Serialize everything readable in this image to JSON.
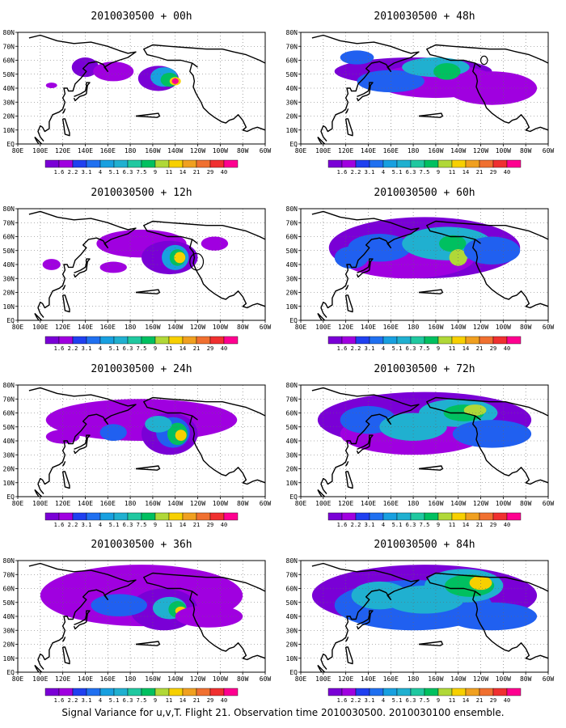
{
  "panels": [
    {
      "id": "p00",
      "title": "2010030500 + 00h",
      "max_level": 11,
      "blobs": [
        [
          140,
          55,
          12,
          7,
          "#7a00d6"
        ],
        [
          165,
          52,
          18,
          7,
          "#a000e0"
        ],
        [
          205,
          47,
          18,
          9,
          "#7a00d6"
        ],
        [
          210,
          48,
          12,
          7,
          "#18a0e0"
        ],
        [
          215,
          46,
          8,
          5,
          "#00c060"
        ],
        [
          220,
          45,
          5,
          3,
          "#f7d000"
        ],
        [
          220,
          45,
          3,
          2,
          "#ff0090"
        ],
        [
          110,
          42,
          5,
          2,
          "#a000e0"
        ]
      ]
    },
    {
      "id": "p48",
      "title": "2010030500 + 48h",
      "max_level": 7,
      "blobs": [
        [
          180,
          52,
          70,
          10,
          "#7a00d6"
        ],
        [
          200,
          45,
          55,
          12,
          "#a000e0"
        ],
        [
          160,
          45,
          30,
          8,
          "#2060f0"
        ],
        [
          200,
          55,
          30,
          7,
          "#20b0d0"
        ],
        [
          210,
          52,
          12,
          6,
          "#00c060"
        ],
        [
          250,
          40,
          40,
          12,
          "#a000e0"
        ],
        [
          130,
          62,
          15,
          5,
          "#2060f0"
        ]
      ]
    },
    {
      "id": "p12",
      "title": "2010030500 + 12h",
      "max_level": 10,
      "blobs": [
        [
          190,
          55,
          40,
          10,
          "#a000e0"
        ],
        [
          215,
          45,
          25,
          12,
          "#7a00d6"
        ],
        [
          220,
          45,
          12,
          9,
          "#18a0e0"
        ],
        [
          222,
          45,
          7,
          6,
          "#00c060"
        ],
        [
          224,
          45,
          5,
          4,
          "#f7d000"
        ],
        [
          110,
          40,
          8,
          4,
          "#a000e0"
        ],
        [
          165,
          38,
          12,
          4,
          "#a000e0"
        ],
        [
          255,
          55,
          12,
          5,
          "#a000e0"
        ]
      ]
    },
    {
      "id": "p60",
      "title": "2010030500 + 60h",
      "max_level": 8,
      "blobs": [
        [
          190,
          52,
          85,
          22,
          "#7a00d6"
        ],
        [
          175,
          45,
          60,
          15,
          "#a000e0"
        ],
        [
          150,
          52,
          28,
          10,
          "#2060f0"
        ],
        [
          210,
          55,
          40,
          12,
          "#20b0d0"
        ],
        [
          215,
          55,
          12,
          6,
          "#00c060"
        ],
        [
          220,
          45,
          8,
          6,
          "#b0d838"
        ],
        [
          250,
          50,
          25,
          10,
          "#2060f0"
        ],
        [
          125,
          45,
          15,
          8,
          "#2060f0"
        ]
      ]
    },
    {
      "id": "p24",
      "title": "2010030500 + 24h",
      "max_level": 10,
      "blobs": [
        [
          190,
          55,
          85,
          15,
          "#a000e0"
        ],
        [
          215,
          45,
          25,
          15,
          "#7a00d6"
        ],
        [
          218,
          46,
          15,
          11,
          "#2060f0"
        ],
        [
          222,
          45,
          9,
          8,
          "#00c060"
        ],
        [
          225,
          44,
          5,
          4,
          "#f7d000"
        ],
        [
          165,
          46,
          12,
          6,
          "#2060f0"
        ],
        [
          120,
          43,
          15,
          5,
          "#a000e0"
        ],
        [
          205,
          52,
          12,
          6,
          "#20b0d0"
        ]
      ]
    },
    {
      "id": "p72",
      "title": "2010030500 + 72h",
      "max_level": 9,
      "blobs": [
        [
          190,
          55,
          95,
          20,
          "#7a00d6"
        ],
        [
          180,
          45,
          65,
          15,
          "#a000e0"
        ],
        [
          140,
          55,
          25,
          10,
          "#2060f0"
        ],
        [
          180,
          50,
          30,
          10,
          "#20b0d0"
        ],
        [
          220,
          60,
          35,
          10,
          "#20b0d0"
        ],
        [
          225,
          60,
          18,
          6,
          "#00c060"
        ],
        [
          235,
          62,
          10,
          4,
          "#b0d838"
        ],
        [
          250,
          45,
          35,
          10,
          "#2060f0"
        ]
      ]
    },
    {
      "id": "p36",
      "title": "2010030500 + 36h",
      "max_level": 10,
      "blobs": [
        [
          190,
          55,
          90,
          22,
          "#a000e0"
        ],
        [
          210,
          45,
          30,
          15,
          "#7a00d6"
        ],
        [
          170,
          48,
          25,
          8,
          "#2060f0"
        ],
        [
          215,
          46,
          15,
          8,
          "#20b0d0"
        ],
        [
          222,
          45,
          8,
          6,
          "#00c060"
        ],
        [
          225,
          44,
          5,
          3,
          "#f7d000"
        ],
        [
          130,
          45,
          10,
          5,
          "#a000e0"
        ],
        [
          250,
          40,
          30,
          8,
          "#a000e0"
        ]
      ]
    },
    {
      "id": "p84",
      "title": "2010030500 + 84h",
      "max_level": 10,
      "blobs": [
        [
          190,
          55,
          100,
          22,
          "#7a00d6"
        ],
        [
          180,
          48,
          70,
          18,
          "#2060f0"
        ],
        [
          150,
          55,
          25,
          10,
          "#20b0d0"
        ],
        [
          190,
          52,
          35,
          10,
          "#20b0d0"
        ],
        [
          225,
          62,
          35,
          12,
          "#20b0d0"
        ],
        [
          230,
          62,
          22,
          8,
          "#00c060"
        ],
        [
          240,
          64,
          10,
          5,
          "#f7d000"
        ],
        [
          250,
          40,
          40,
          10,
          "#2060f0"
        ]
      ]
    }
  ],
  "axes": {
    "lon_ticks": [
      "80E",
      "100E",
      "120E",
      "140E",
      "160E",
      "180",
      "160W",
      "140W",
      "120W",
      "100W",
      "80W",
      "60W"
    ],
    "lat_ticks": [
      "EQ",
      "10N",
      "20N",
      "30N",
      "40N",
      "50N",
      "60N",
      "70N",
      "80N"
    ],
    "lon_range": [
      80,
      300
    ],
    "lat_range": [
      0,
      80
    ]
  },
  "colorbar": {
    "levels": [
      "1.6",
      "2.2",
      "3.1",
      "4",
      "5.1",
      "6.3",
      "7.5",
      "9",
      "11",
      "14",
      "21",
      "29",
      "40"
    ],
    "colors": [
      "#7a00d6",
      "#a000e0",
      "#2040f0",
      "#2070f0",
      "#18a0e0",
      "#20b0d0",
      "#20c8a0",
      "#00c060",
      "#b0d838",
      "#f7d000",
      "#f0a020",
      "#f07030",
      "#f03030",
      "#ff0090"
    ]
  },
  "caption": "Signal Variance for u,v,T. Flight 21. Observation time 2010030500. 2010030100 ensemble."
}
